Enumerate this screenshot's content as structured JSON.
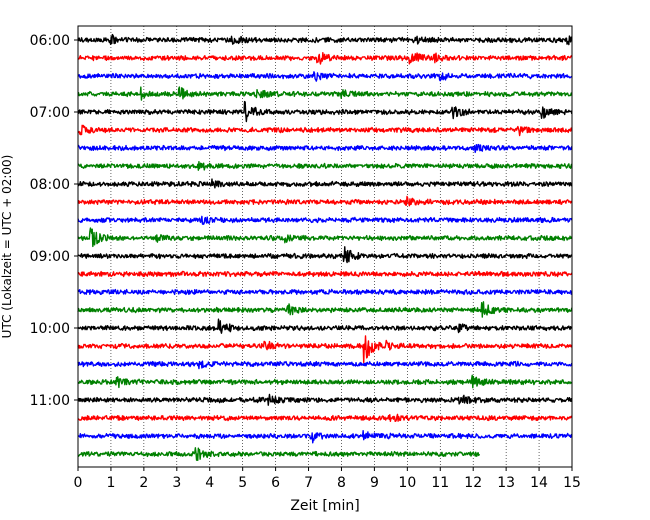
{
  "chart_data": {
    "type": "line",
    "title": "",
    "xlabel": "Zeit  [min]",
    "ylabel": "UTC (Lokalzeit = UTC + 02:00)",
    "xlim": [
      0,
      15
    ],
    "x_ticks": [
      "0",
      "1",
      "2",
      "3",
      "4",
      "5",
      "6",
      "7",
      "8",
      "9",
      "10",
      "11",
      "12",
      "13",
      "14",
      "15"
    ],
    "y_ticks": [
      "06:00",
      "07:00",
      "08:00",
      "09:00",
      "10:00",
      "11:00"
    ],
    "grid": "vertical dotted lines at each minute",
    "trace_length_min": 15,
    "trace_interval_min": 15,
    "colors": [
      "#000000",
      "#ff0000",
      "#0000ff",
      "#008000"
    ],
    "series": [
      {
        "start": "06:00",
        "end_min": 15,
        "color": "#000000",
        "events": [
          {
            "t": 1.0,
            "amp": 0.5
          },
          {
            "t": 4.7,
            "amp": 0.6
          },
          {
            "t": 10.2,
            "amp": 0.4
          },
          {
            "t": 14.9,
            "amp": 0.5
          }
        ]
      },
      {
        "start": "06:15",
        "end_min": 15,
        "color": "#ff0000",
        "events": [
          {
            "t": 7.3,
            "amp": 0.9
          },
          {
            "t": 10.1,
            "amp": 1.0
          },
          {
            "t": 10.8,
            "amp": 0.5
          }
        ]
      },
      {
        "start": "06:30",
        "end_min": 15,
        "color": "#0000ff",
        "events": [
          {
            "t": 7.2,
            "amp": 0.6
          },
          {
            "t": 11.0,
            "amp": 0.6
          }
        ]
      },
      {
        "start": "06:45",
        "end_min": 15,
        "color": "#008000",
        "events": [
          {
            "t": 1.9,
            "amp": 0.7
          },
          {
            "t": 3.1,
            "amp": 0.8
          },
          {
            "t": 5.4,
            "amp": 0.6
          },
          {
            "t": 8.0,
            "amp": 0.5
          }
        ]
      },
      {
        "start": "07:00",
        "end_min": 15,
        "color": "#000000",
        "events": [
          {
            "t": 5.1,
            "amp": 1.2
          },
          {
            "t": 11.4,
            "amp": 0.7
          },
          {
            "t": 14.1,
            "amp": 0.7
          }
        ]
      },
      {
        "start": "07:15",
        "end_min": 15,
        "color": "#ff0000",
        "events": [
          {
            "t": 0.1,
            "amp": 0.5
          },
          {
            "t": 13.4,
            "amp": 0.5
          }
        ]
      },
      {
        "start": "07:30",
        "end_min": 15,
        "color": "#0000ff",
        "events": [
          {
            "t": 12.1,
            "amp": 0.4
          }
        ]
      },
      {
        "start": "07:45",
        "end_min": 15,
        "color": "#008000",
        "events": [
          {
            "t": 3.7,
            "amp": 0.4
          }
        ]
      },
      {
        "start": "08:00",
        "end_min": 15,
        "color": "#000000",
        "events": [
          {
            "t": 4.1,
            "amp": 0.4
          }
        ]
      },
      {
        "start": "08:15",
        "end_min": 15,
        "color": "#ff0000",
        "events": [
          {
            "t": 10.0,
            "amp": 0.5
          }
        ]
      },
      {
        "start": "08:30",
        "end_min": 15,
        "color": "#0000ff",
        "events": [
          {
            "t": 3.8,
            "amp": 0.4
          }
        ]
      },
      {
        "start": "08:45",
        "end_min": 15,
        "color": "#008000",
        "events": [
          {
            "t": 0.4,
            "amp": 1.3
          },
          {
            "t": 2.4,
            "amp": 0.4
          },
          {
            "t": 6.3,
            "amp": 0.4
          }
        ]
      },
      {
        "start": "09:00",
        "end_min": 15,
        "color": "#000000",
        "events": [
          {
            "t": 8.1,
            "amp": 1.1
          }
        ]
      },
      {
        "start": "09:15",
        "end_min": 15,
        "color": "#ff0000",
        "events": []
      },
      {
        "start": "09:30",
        "end_min": 15,
        "color": "#0000ff",
        "events": []
      },
      {
        "start": "09:45",
        "end_min": 15,
        "color": "#008000",
        "events": [
          {
            "t": 6.4,
            "amp": 0.6
          },
          {
            "t": 12.3,
            "amp": 0.9
          }
        ]
      },
      {
        "start": "10:00",
        "end_min": 15,
        "color": "#000000",
        "events": [
          {
            "t": 4.3,
            "amp": 1.2
          },
          {
            "t": 11.6,
            "amp": 0.5
          }
        ]
      },
      {
        "start": "10:15",
        "end_min": 15,
        "color": "#ff0000",
        "events": [
          {
            "t": 5.7,
            "amp": 0.5
          },
          {
            "t": 8.7,
            "amp": 2.2
          },
          {
            "t": 9.4,
            "amp": 0.5
          }
        ]
      },
      {
        "start": "10:30",
        "end_min": 15,
        "color": "#0000ff",
        "events": [
          {
            "t": 3.7,
            "amp": 0.4
          }
        ]
      },
      {
        "start": "10:45",
        "end_min": 15,
        "color": "#008000",
        "events": [
          {
            "t": 1.2,
            "amp": 0.7
          },
          {
            "t": 12.0,
            "amp": 0.6
          }
        ]
      },
      {
        "start": "11:00",
        "end_min": 15,
        "color": "#000000",
        "events": [
          {
            "t": 5.8,
            "amp": 0.6
          },
          {
            "t": 11.6,
            "amp": 0.8
          }
        ]
      },
      {
        "start": "11:15",
        "end_min": 15,
        "color": "#ff0000",
        "events": [
          {
            "t": 9.5,
            "amp": 0.5
          }
        ]
      },
      {
        "start": "11:30",
        "end_min": 15,
        "color": "#0000ff",
        "events": [
          {
            "t": 7.1,
            "amp": 0.8
          },
          {
            "t": 8.7,
            "amp": 0.5
          }
        ]
      },
      {
        "start": "11:45",
        "end_min": 12.2,
        "color": "#008000",
        "events": [
          {
            "t": 3.6,
            "amp": 0.7
          }
        ]
      }
    ]
  }
}
